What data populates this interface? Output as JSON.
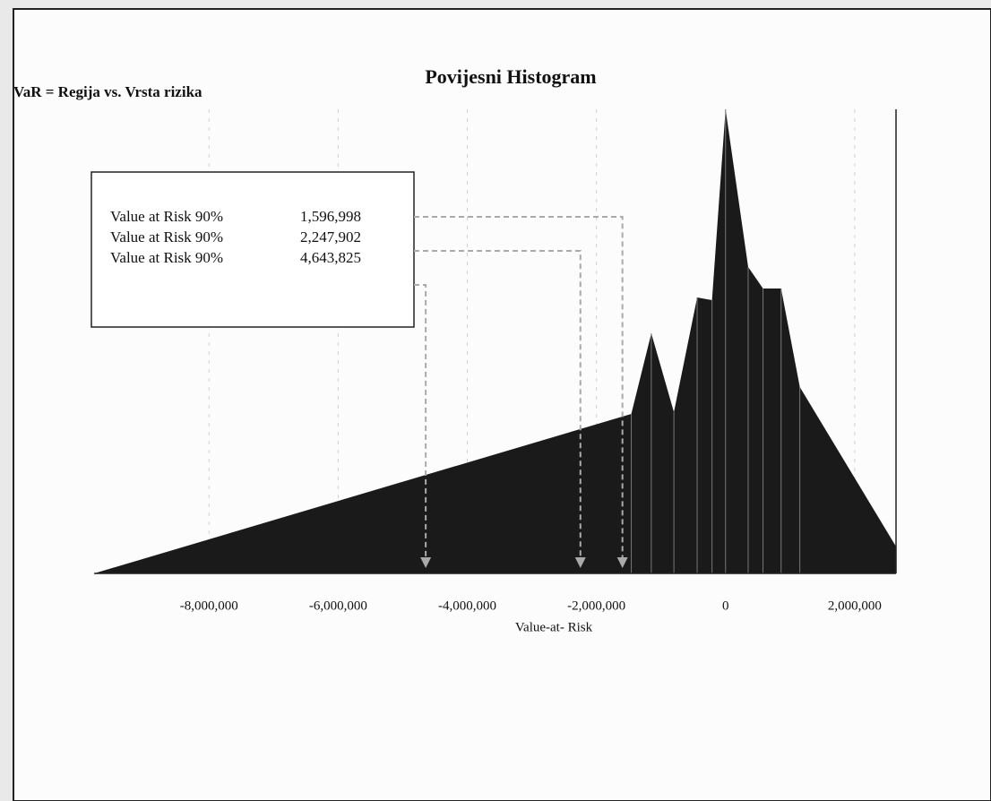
{
  "chart_data": {
    "type": "area",
    "title": "Povijesni Histogram",
    "subtitle": "VaR = Regija vs. Vrsta rizika",
    "x_label": "Value-at- Risk",
    "color": "#1a1a1a",
    "x": [
      -9780000,
      -1460000,
      -1150000,
      -800000,
      -440000,
      -210000,
      0,
      350000,
      580000,
      860000,
      1150000,
      2640000
    ],
    "values": [
      0,
      178,
      268,
      180,
      308,
      305,
      518,
      342,
      318,
      318,
      208,
      30
    ],
    "xlim": [
      -9780000,
      2640000
    ],
    "xticks": [
      {
        "value": -8000000,
        "label": "-8,000,000"
      },
      {
        "value": -6000000,
        "label": "-6,000,000"
      },
      {
        "value": -4000000,
        "label": "-4,000,000"
      },
      {
        "value": -2000000,
        "label": "-2,000,000"
      },
      0,
      {
        "value": 2000000,
        "label": "2,000,000"
      }
    ],
    "var_box": [
      {
        "label": "Value at Risk 90%",
        "value": 1596998,
        "value_label": "1,596,998"
      },
      {
        "label": "Value at Risk 90%",
        "value": 2247902,
        "value_label": "2,247,902"
      },
      {
        "label": "Value at Risk 90%",
        "value": 4643825,
        "value_label": "4,643,825"
      }
    ]
  }
}
